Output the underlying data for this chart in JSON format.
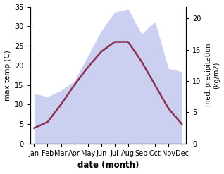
{
  "months": [
    "Jan",
    "Feb",
    "Mar",
    "Apr",
    "May",
    "Jun",
    "Jul",
    "Aug",
    "Sep",
    "Oct",
    "Nov",
    "Dec"
  ],
  "month_positions": [
    0,
    1,
    2,
    3,
    4,
    5,
    6,
    7,
    8,
    9,
    10,
    11
  ],
  "temp_max": [
    4.0,
    5.5,
    10.0,
    15.0,
    19.5,
    23.5,
    26.0,
    26.0,
    21.0,
    15.0,
    9.0,
    5.0
  ],
  "precip": [
    8.0,
    7.5,
    8.5,
    10.0,
    14.0,
    18.0,
    21.0,
    21.5,
    17.5,
    19.5,
    12.0,
    11.5
  ],
  "temp_ylim": [
    0,
    35
  ],
  "precip_ylim": [
    0,
    21.875
  ],
  "temp_yticks": [
    0,
    5,
    10,
    15,
    20,
    25,
    30,
    35
  ],
  "precip_yticks": [
    0,
    5,
    10,
    15,
    20
  ],
  "fill_color": "#b0b8e8",
  "fill_alpha": 0.65,
  "line_color": "#8b3050",
  "line_width": 1.8,
  "xlabel": "date (month)",
  "ylabel_left": "max temp (C)",
  "ylabel_right": "med. precipitation\n(kg/m2)",
  "background_color": "#ffffff"
}
